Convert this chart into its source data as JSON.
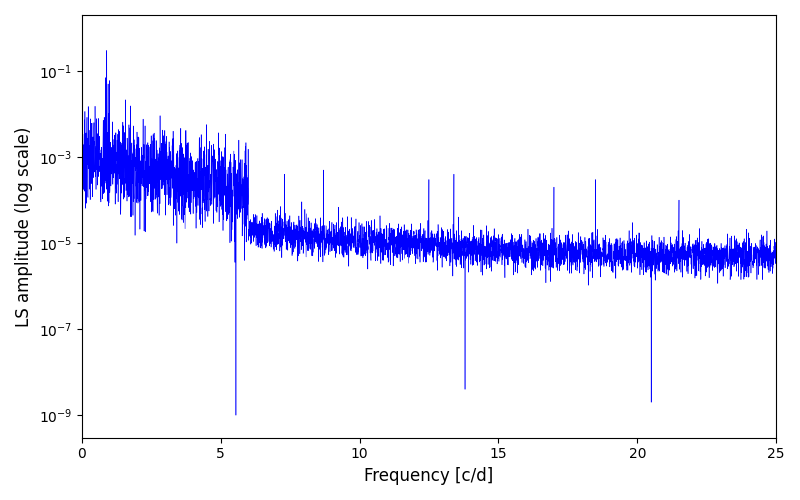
{
  "xlabel": "Frequency [c/d]",
  "ylabel": "LS amplitude (log scale)",
  "line_color": "#0000ff",
  "xlim": [
    0,
    25
  ],
  "ylim": [
    3e-10,
    2.0
  ],
  "yticks": [
    1e-09,
    1e-07,
    1e-05,
    0.001,
    0.1
  ],
  "xticks": [
    0,
    5,
    10,
    15,
    20,
    25
  ],
  "figsize": [
    8.0,
    5.0
  ],
  "dpi": 100,
  "seed": 7,
  "n_points": 5000,
  "freq_max": 25.0,
  "line_width": 0.4
}
